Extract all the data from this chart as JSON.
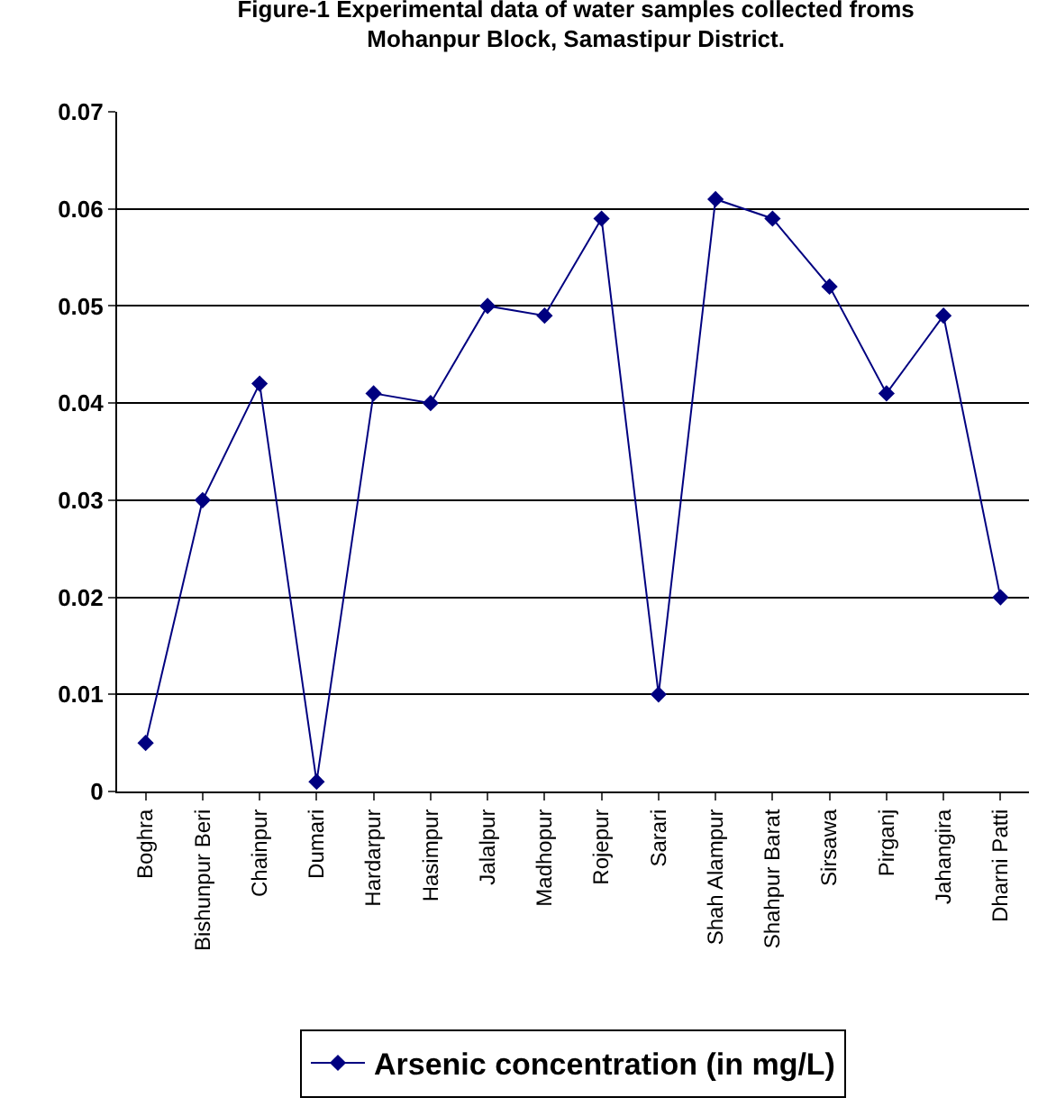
{
  "chart_data": {
    "type": "line",
    "title": "Figure-1 Experimental data of water samples collected froms Mohanpur Block, Samastipur District.",
    "categories": [
      "Boghra",
      "Bishunpur Beri",
      "Chainpur",
      "Dumari",
      "Hardarpur",
      "Hasimpur",
      "Jalalpur",
      "Madhopur",
      "Rojepur",
      "Sarari",
      "Shah Alampur",
      "Shahpur Barat",
      "Sirsawa",
      "Pirganj",
      "Jahangira",
      "Dharni Patti"
    ],
    "series": [
      {
        "name": "Arsenic concentration (in mg/L)",
        "color": "#000080",
        "values": [
          0.005,
          0.03,
          0.042,
          0.001,
          0.041,
          0.04,
          0.05,
          0.049,
          0.059,
          0.01,
          0.061,
          0.059,
          0.052,
          0.041,
          0.049,
          0.02
        ]
      }
    ],
    "ylim": [
      0,
      0.07
    ],
    "yticks": [
      0,
      0.01,
      0.02,
      0.03,
      0.04,
      0.05,
      0.06,
      0.07
    ],
    "grid": "y",
    "legend": "bottom",
    "marker": "diamond",
    "line_style": "solid"
  }
}
